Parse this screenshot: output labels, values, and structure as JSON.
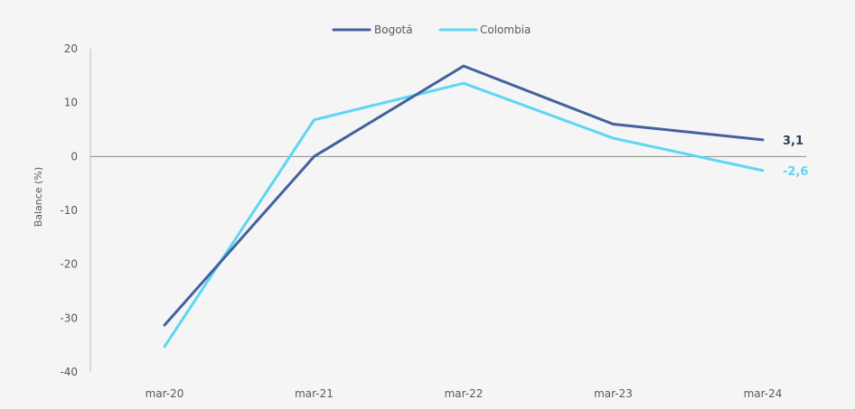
{
  "chart_data": {
    "type": "line",
    "title": "",
    "xlabel": "",
    "ylabel": "Balance (%)",
    "categories": [
      "mar-20",
      "mar-21",
      "mar-22",
      "mar-23",
      "mar-24"
    ],
    "ylim": [
      -40,
      20
    ],
    "yticks": [
      20,
      10,
      0,
      -10,
      -20,
      -30,
      -40
    ],
    "grid": false,
    "zero_line": true,
    "legend_position": "top-center",
    "series": [
      {
        "name": "Bogotá",
        "color": "#44609e",
        "values": [
          -31.3,
          0,
          16.8,
          6.0,
          3.1
        ],
        "end_label": "3,1"
      },
      {
        "name": "Colombia",
        "color": "#5ed6f2",
        "values": [
          -35.3,
          6.8,
          13.6,
          3.4,
          -2.6
        ],
        "end_label": "-2,6"
      }
    ]
  }
}
